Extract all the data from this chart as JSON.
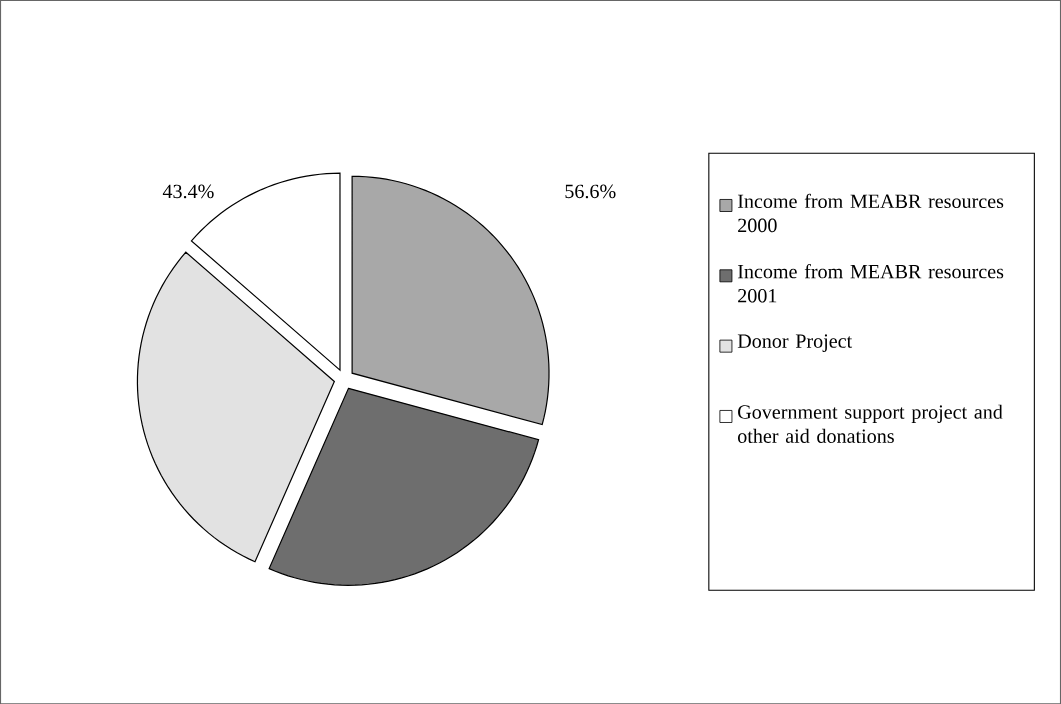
{
  "chart_data": {
    "type": "pie",
    "categories": [
      "Income from MEABR resources 2000",
      "Income from MEABR resources 2001",
      "Donor Project",
      "Government support project and other aid donations"
    ],
    "values": [
      29.2,
      27.4,
      29.8,
      13.6
    ],
    "colors": [
      "#a8a8a8",
      "#6e6e6e",
      "#e2e2e2",
      "#ffffff"
    ],
    "annotations": [
      "43.4%",
      "56.6%"
    ],
    "legend": "right"
  }
}
